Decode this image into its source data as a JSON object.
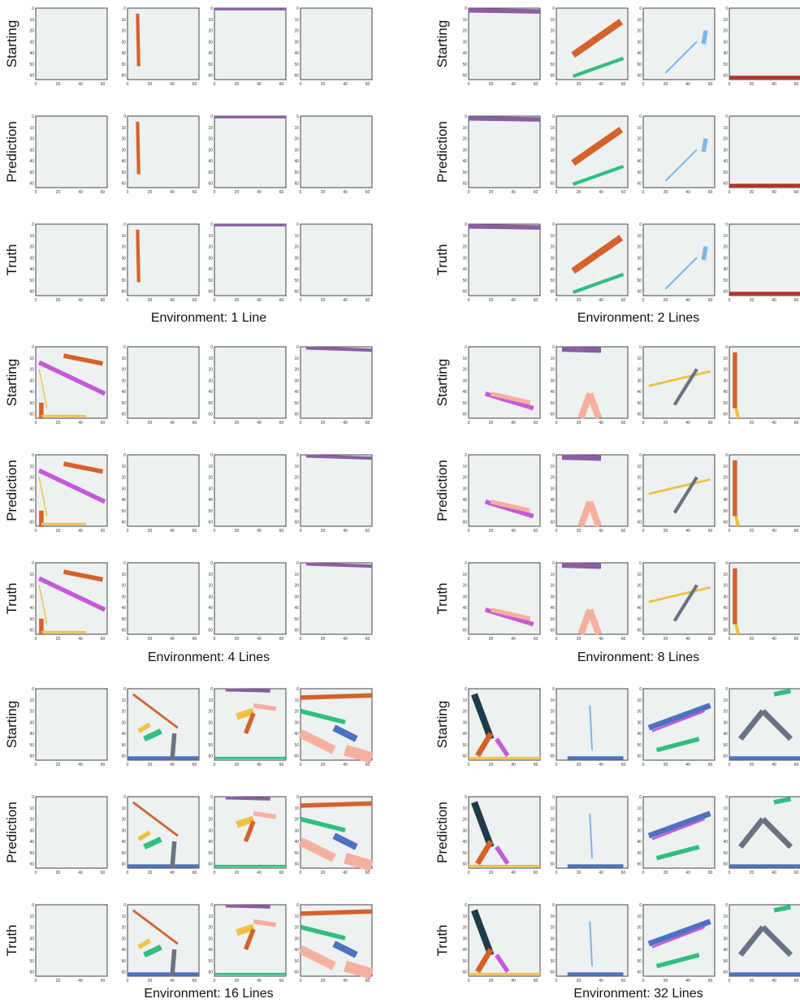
{
  "row_labels": [
    "Starting",
    "Prediction",
    "Truth"
  ],
  "x_ticks": [
    0,
    20,
    40,
    60
  ],
  "y_ticks": [
    0,
    10,
    20,
    30,
    40,
    50,
    60
  ],
  "groups": [
    {
      "caption": "Environment: 1 Line"
    },
    {
      "caption": "Environment: 2 Lines"
    },
    {
      "caption": "Environment: 4 Lines"
    },
    {
      "caption": "Environment: 8 Lines"
    },
    {
      "caption": "Environment: 16 Lines"
    },
    {
      "caption": "Environment: 32 Lines"
    }
  ]
}
